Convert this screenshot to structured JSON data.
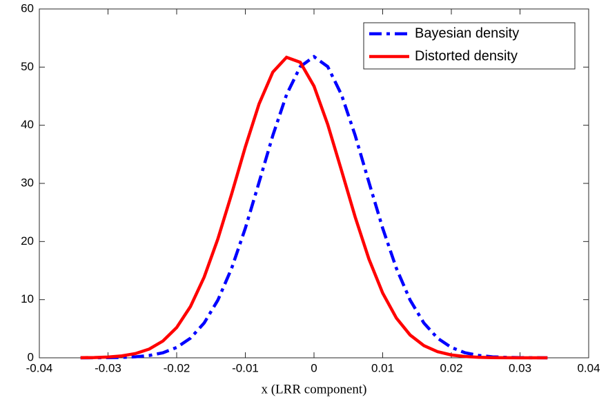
{
  "chart_data": {
    "type": "line",
    "xlabel": "x (LRR component)",
    "x": [
      -0.034,
      -0.032,
      -0.03,
      -0.028,
      -0.026,
      -0.024,
      -0.022,
      -0.02,
      -0.018,
      -0.016,
      -0.014,
      -0.012,
      -0.01,
      -0.008,
      -0.006,
      -0.004,
      -0.002,
      0,
      0.002,
      0.004,
      0.006,
      0.008,
      0.01,
      0.012,
      0.014,
      0.016,
      0.018,
      0.02,
      0.022,
      0.024,
      0.026,
      0.028,
      0.03,
      0.032,
      0.034
    ],
    "series": [
      {
        "name": "Bayesian density",
        "color": "#0000ff",
        "dash": true,
        "values": [
          0,
          0.01,
          0.03,
          0.07,
          0.17,
          0.4,
          0.87,
          1.78,
          3.37,
          5.98,
          9.92,
          15.38,
          22.29,
          30.19,
          38.23,
          45.26,
          50.08,
          51.8,
          50.08,
          45.26,
          38.23,
          30.19,
          22.29,
          15.38,
          9.92,
          5.98,
          3.37,
          1.78,
          0.87,
          0.4,
          0.17,
          0.07,
          0.03,
          0.01,
          0
        ]
      },
      {
        "name": "Distorted density",
        "color": "#ff0000",
        "dash": false,
        "values": [
          0.02,
          0.05,
          0.14,
          0.33,
          0.73,
          1.5,
          2.89,
          5.21,
          8.8,
          13.87,
          20.45,
          28.16,
          36.28,
          43.67,
          49.14,
          51.69,
          50.83,
          46.72,
          40.13,
          32.24,
          24.2,
          16.98,
          11.14,
          6.83,
          3.92,
          2.1,
          1.05,
          0.49,
          0.22,
          0.09,
          0.03,
          0.01,
          0,
          0,
          0
        ]
      }
    ],
    "xlim": [
      -0.04,
      0.04
    ],
    "xticks": [
      -0.04,
      -0.03,
      -0.02,
      -0.01,
      0,
      0.01,
      0.02,
      0.03,
      0.04
    ],
    "ylim": [
      0,
      60
    ],
    "yticks": [
      0,
      10,
      20,
      30,
      40,
      50,
      60
    ],
    "legend": "upper right"
  }
}
